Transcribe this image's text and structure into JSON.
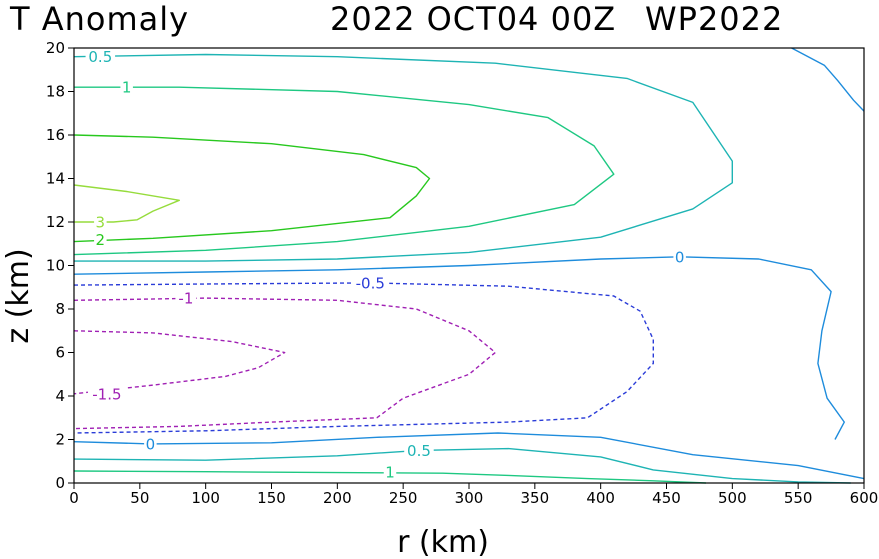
{
  "chart_data": {
    "type": "contour",
    "title": {
      "field": "T Anomaly",
      "date": "2022 OCT04 00Z",
      "storm": "WP2022"
    },
    "xlabel": "r (km)",
    "ylabel": "z (km)",
    "xlim": [
      0,
      600
    ],
    "ylim": [
      0,
      20
    ],
    "xticks": [
      0,
      50,
      100,
      150,
      200,
      250,
      300,
      350,
      400,
      450,
      500,
      550,
      600
    ],
    "yticks": [
      0,
      2,
      4,
      6,
      8,
      10,
      12,
      14,
      16,
      18,
      20
    ],
    "contours": [
      {
        "level": 3,
        "label": "3",
        "color": "#96dc3c",
        "dashed": false,
        "label_pos": [
          20,
          12
        ],
        "points": [
          [
            0,
            13.7
          ],
          [
            40,
            13.4
          ],
          [
            80,
            13.0
          ],
          [
            60,
            12.5
          ],
          [
            48,
            12.1
          ],
          [
            30,
            12.0
          ],
          [
            0,
            12.0
          ]
        ]
      },
      {
        "level": 2,
        "label": "2",
        "color": "#28c81e",
        "dashed": false,
        "label_pos": [
          20,
          11.2
        ],
        "points": [
          [
            0,
            16.0
          ],
          [
            60,
            15.9
          ],
          [
            150,
            15.6
          ],
          [
            220,
            15.1
          ],
          [
            260,
            14.5
          ],
          [
            270,
            14.0
          ],
          [
            260,
            13.2
          ],
          [
            240,
            12.2
          ],
          [
            150,
            11.6
          ],
          [
            60,
            11.25
          ],
          [
            0,
            11.1
          ]
        ]
      },
      {
        "level": 1,
        "label": "1",
        "color": "#1ec882",
        "dashed": false,
        "label_pos": [
          40,
          18.2
        ],
        "points": [
          [
            0,
            18.2
          ],
          [
            80,
            18.2
          ],
          [
            200,
            18.0
          ],
          [
            300,
            17.4
          ],
          [
            360,
            16.8
          ],
          [
            395,
            15.5
          ],
          [
            410,
            14.2
          ],
          [
            380,
            12.8
          ],
          [
            300,
            11.8
          ],
          [
            200,
            11.1
          ],
          [
            100,
            10.7
          ],
          [
            0,
            10.5
          ]
        ]
      },
      {
        "level": 1,
        "label": "1",
        "color": "#1ec882",
        "dashed": false,
        "label_pos": [
          240,
          0.5
        ],
        "points": [
          [
            0,
            0.55
          ],
          [
            100,
            0.52
          ],
          [
            200,
            0.48
          ],
          [
            280,
            0.45
          ],
          [
            330,
            0.35
          ],
          [
            390,
            0.2
          ],
          [
            440,
            0.1
          ],
          [
            480,
            0.0
          ]
        ]
      },
      {
        "level": 0.5,
        "label": "0.5",
        "color": "#1eb4b4",
        "dashed": false,
        "label_pos": [
          20,
          19.6
        ],
        "points": [
          [
            0,
            19.6
          ],
          [
            100,
            19.7
          ],
          [
            200,
            19.6
          ],
          [
            320,
            19.3
          ],
          [
            420,
            18.6
          ],
          [
            470,
            17.5
          ],
          [
            500,
            14.8
          ],
          [
            500,
            13.8
          ],
          [
            470,
            12.6
          ],
          [
            400,
            11.3
          ],
          [
            300,
            10.6
          ],
          [
            200,
            10.3
          ],
          [
            100,
            10.2
          ],
          [
            0,
            10.2
          ]
        ]
      },
      {
        "level": 0.5,
        "label": "0.5",
        "color": "#1eb4b4",
        "dashed": false,
        "label_pos": [
          262,
          1.5
        ],
        "points": [
          [
            0,
            1.1
          ],
          [
            100,
            1.05
          ],
          [
            200,
            1.25
          ],
          [
            262,
            1.5
          ],
          [
            330,
            1.58
          ],
          [
            400,
            1.2
          ],
          [
            440,
            0.6
          ],
          [
            500,
            0.2
          ],
          [
            550,
            0.05
          ],
          [
            590,
            0.0
          ]
        ]
      },
      {
        "level": 0,
        "label": "0",
        "color": "#1e8cdc",
        "dashed": false,
        "label_pos": [
          460,
          10.4
        ],
        "points": [
          [
            545,
            20.0
          ],
          [
            570,
            19.2
          ],
          [
            580,
            18.5
          ],
          [
            592,
            17.6
          ],
          [
            600,
            17.1
          ]
        ]
      },
      {
        "level": 0,
        "label": "0",
        "color": "#1e8cdc",
        "dashed": false,
        "label_pos": [
          460,
          10.4
        ],
        "points": [
          [
            0,
            9.6
          ],
          [
            100,
            9.7
          ],
          [
            200,
            9.8
          ],
          [
            300,
            10.0
          ],
          [
            400,
            10.3
          ],
          [
            460,
            10.4
          ],
          [
            520,
            10.3
          ],
          [
            560,
            9.8
          ],
          [
            575,
            8.8
          ],
          [
            568,
            7.0
          ],
          [
            565,
            5.5
          ],
          [
            572,
            3.9
          ],
          [
            585,
            2.8
          ],
          [
            578,
            2.0
          ]
        ]
      },
      {
        "level": 0,
        "label": "0",
        "color": "#1e8cdc",
        "dashed": false,
        "label_pos": [
          58,
          1.8
        ],
        "points": [
          [
            0,
            1.9
          ],
          [
            58,
            1.8
          ],
          [
            150,
            1.85
          ],
          [
            230,
            2.1
          ],
          [
            322,
            2.3
          ],
          [
            400,
            2.1
          ],
          [
            470,
            1.3
          ],
          [
            550,
            0.8
          ],
          [
            600,
            0.2
          ]
        ]
      },
      {
        "level": -0.5,
        "label": "-0.5",
        "color": "#2a3cd8",
        "dashed": true,
        "label_pos": [
          225,
          9.2
        ],
        "points": [
          [
            0,
            9.1
          ],
          [
            100,
            9.15
          ],
          [
            225,
            9.2
          ],
          [
            330,
            9.05
          ],
          [
            410,
            8.6
          ],
          [
            430,
            7.9
          ],
          [
            440,
            6.6
          ],
          [
            440,
            5.5
          ],
          [
            420,
            4.2
          ],
          [
            390,
            3.0
          ],
          [
            330,
            2.8
          ],
          [
            200,
            2.6
          ],
          [
            100,
            2.4
          ],
          [
            0,
            2.3
          ]
        ]
      },
      {
        "level": -1,
        "label": "-1",
        "color": "#a020b4",
        "dashed": true,
        "label_pos": [
          85,
          8.5
        ],
        "points": [
          [
            0,
            8.4
          ],
          [
            100,
            8.5
          ],
          [
            200,
            8.4
          ],
          [
            260,
            8.0
          ],
          [
            300,
            7.0
          ],
          [
            320,
            6.0
          ],
          [
            300,
            5.0
          ],
          [
            250,
            3.9
          ],
          [
            230,
            3.0
          ],
          [
            150,
            2.8
          ],
          [
            80,
            2.6
          ],
          [
            0,
            2.5
          ]
        ]
      },
      {
        "level": -1.5,
        "label": "-1.5",
        "color": "#a020b4",
        "dashed": true,
        "label_pos": [
          25,
          4.1
        ],
        "points": [
          [
            0,
            7.0
          ],
          [
            60,
            6.9
          ],
          [
            120,
            6.5
          ],
          [
            160,
            6.0
          ],
          [
            140,
            5.3
          ],
          [
            115,
            4.9
          ],
          [
            60,
            4.5
          ],
          [
            0,
            4.1
          ]
        ]
      }
    ]
  }
}
